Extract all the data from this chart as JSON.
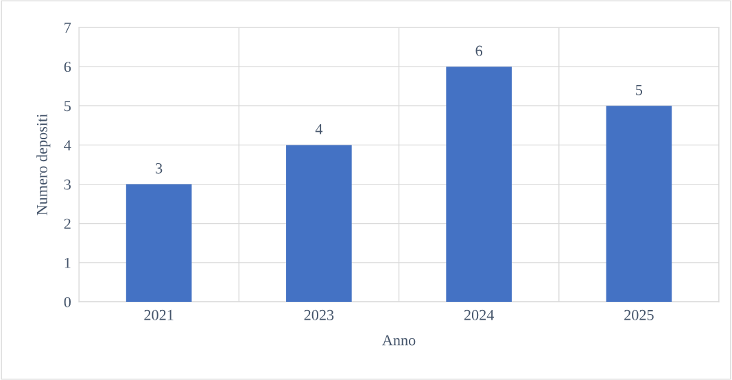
{
  "chart_data": {
    "type": "bar",
    "categories": [
      "2021",
      "2023",
      "2024",
      "2025"
    ],
    "values": [
      3,
      4,
      6,
      5
    ],
    "color": "#4472c4",
    "xlabel": "Anno",
    "ylabel": "Numero depositi",
    "ylim": [
      0,
      7
    ],
    "yticks": [
      0,
      1,
      2,
      3,
      4,
      5,
      6,
      7
    ],
    "grid": true,
    "data_labels": true
  }
}
